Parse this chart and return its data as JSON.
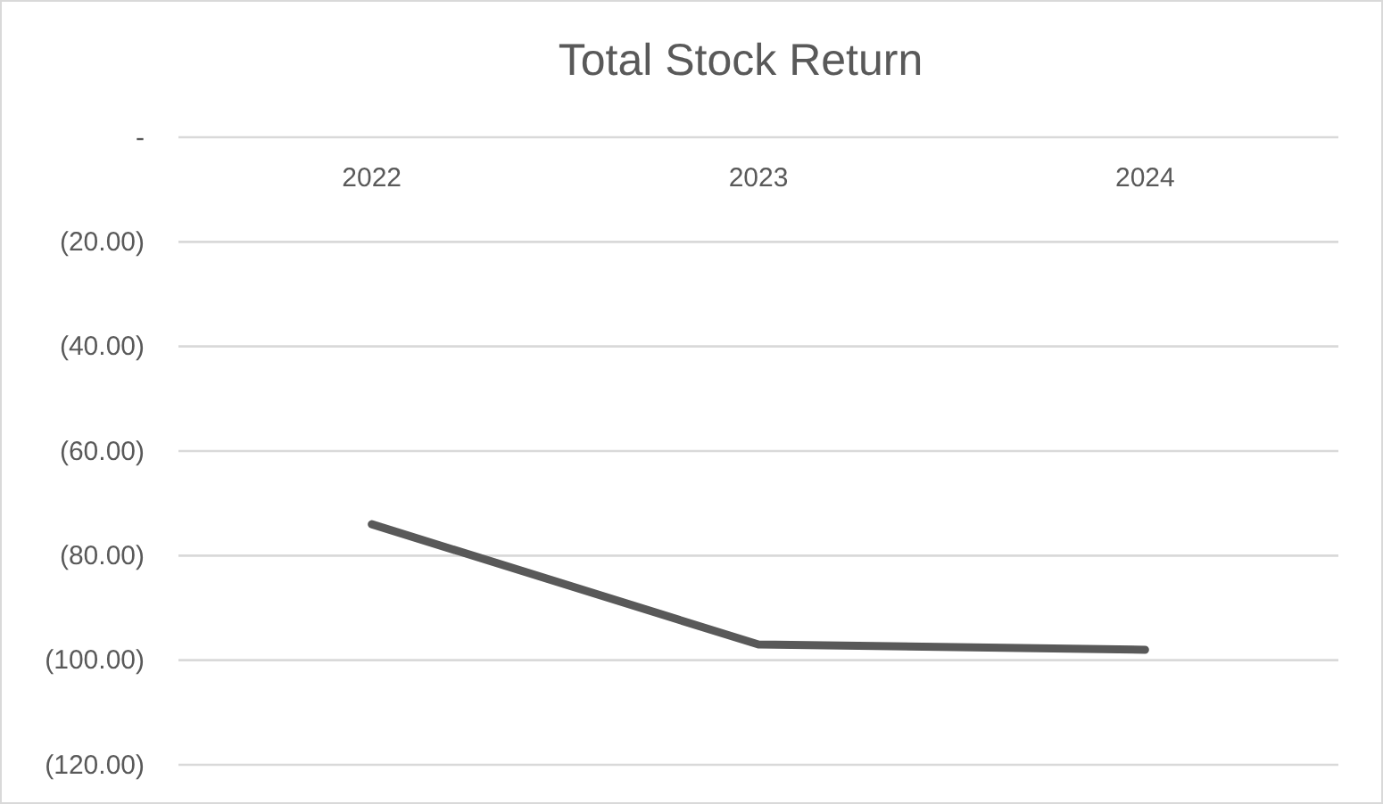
{
  "chart_data": {
    "type": "line",
    "title": "Total Stock Return",
    "categories": [
      "2022",
      "2023",
      "2024"
    ],
    "series": [
      {
        "color": "#595959",
        "values": [
          -74,
          -97,
          -98
        ]
      }
    ],
    "ylim": [
      -120,
      0
    ],
    "yticks": [
      {
        "value": -120,
        "label": "(120.00)"
      },
      {
        "value": -100,
        "label": "(100.00)"
      },
      {
        "value": -80,
        "label": "(80.00)"
      },
      {
        "value": -60,
        "label": "(60.00)"
      },
      {
        "value": -40,
        "label": "(40.00)"
      },
      {
        "value": -20,
        "label": "(20.00)"
      },
      {
        "value": 0,
        "label": "-"
      }
    ],
    "grid": "y",
    "line_style": "solid",
    "marker": "none"
  }
}
